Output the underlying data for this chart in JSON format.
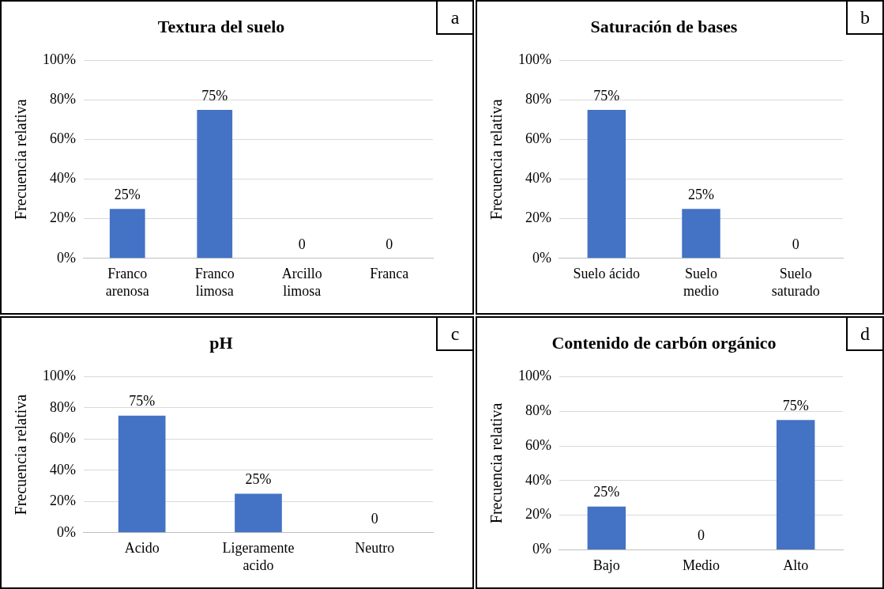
{
  "chart_data": [
    {
      "type": "bar",
      "title": "Textura del suelo",
      "ylabel": "Frecuencia relativa",
      "categories": [
        "Franco\narenosa",
        "Franco\nlimosa",
        "Arcillo\nlimosa",
        "Franca"
      ],
      "values": [
        25,
        75,
        0,
        0
      ],
      "value_labels": [
        "25%",
        "75%",
        "0",
        "0"
      ],
      "color": "#4472c4",
      "ylim": [
        0,
        100
      ],
      "yticks": [
        {
          "value": 0,
          "label": "0%"
        },
        {
          "value": 20,
          "label": "20%"
        },
        {
          "value": 40,
          "label": "40%"
        },
        {
          "value": 60,
          "label": "60%"
        },
        {
          "value": 80,
          "label": "80%"
        },
        {
          "value": 100,
          "label": "100%"
        }
      ],
      "grid": "y",
      "annotations": [
        "a"
      ]
    },
    {
      "type": "bar",
      "title": "Saturación de bases",
      "ylabel": "Frecuencia relativa",
      "categories": [
        "Suelo ácido",
        "Suelo\nmedio",
        "Suelo\nsaturado"
      ],
      "values": [
        75,
        25,
        0
      ],
      "value_labels": [
        "75%",
        "25%",
        "0"
      ],
      "color": "#4472c4",
      "ylim": [
        0,
        100
      ],
      "yticks": [
        {
          "value": 0,
          "label": "0%"
        },
        {
          "value": 20,
          "label": "20%"
        },
        {
          "value": 40,
          "label": "40%"
        },
        {
          "value": 60,
          "label": "60%"
        },
        {
          "value": 80,
          "label": "80%"
        },
        {
          "value": 100,
          "label": "100%"
        }
      ],
      "grid": "y",
      "annotations": [
        "b"
      ]
    },
    {
      "type": "bar",
      "title": "pH",
      "ylabel": "Frecuencia relativa",
      "categories": [
        "Acido",
        "Ligeramente\nacido",
        "Neutro"
      ],
      "values": [
        75,
        25,
        0
      ],
      "value_labels": [
        "75%",
        "25%",
        "0"
      ],
      "color": "#4472c4",
      "ylim": [
        0,
        100
      ],
      "yticks": [
        {
          "value": 0,
          "label": "0%"
        },
        {
          "value": 20,
          "label": "20%"
        },
        {
          "value": 40,
          "label": "40%"
        },
        {
          "value": 60,
          "label": "60%"
        },
        {
          "value": 80,
          "label": "80%"
        },
        {
          "value": 100,
          "label": "100%"
        }
      ],
      "grid": "y",
      "annotations": [
        "c"
      ]
    },
    {
      "type": "bar",
      "title": "Contenido de carbón orgánico",
      "ylabel": "Frecuencia relativa",
      "categories": [
        "Bajo",
        "Medio",
        "Alto"
      ],
      "values": [
        25,
        0,
        75
      ],
      "value_labels": [
        "25%",
        "0",
        "75%"
      ],
      "color": "#4472c4",
      "ylim": [
        0,
        100
      ],
      "yticks": [
        {
          "value": 0,
          "label": "0%"
        },
        {
          "value": 20,
          "label": "20%"
        },
        {
          "value": 40,
          "label": "40%"
        },
        {
          "value": 60,
          "label": "60%"
        },
        {
          "value": 80,
          "label": "80%"
        },
        {
          "value": 100,
          "label": "100%"
        }
      ],
      "grid": "y",
      "annotations": [
        "d"
      ]
    }
  ]
}
